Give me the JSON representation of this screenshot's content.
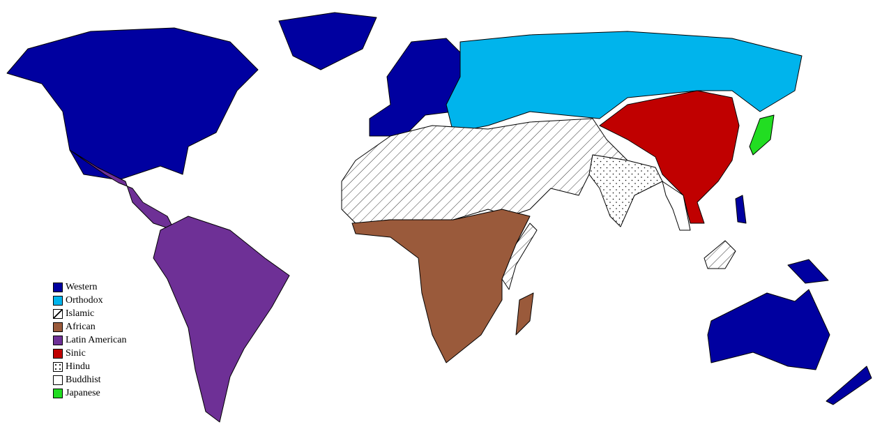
{
  "legend": [
    {
      "label": "Western",
      "color": "#0000a0",
      "fill": "solid"
    },
    {
      "label": "Orthodox",
      "color": "#00b4ec",
      "fill": "solid"
    },
    {
      "label": "Islamic",
      "color": "#ffffff",
      "fill": "hatch"
    },
    {
      "label": "African",
      "color": "#9a5a3b",
      "fill": "solid"
    },
    {
      "label": "Latin American",
      "color": "#6e3096",
      "fill": "solid"
    },
    {
      "label": "Sinic",
      "color": "#c00000",
      "fill": "solid"
    },
    {
      "label": "Hindu",
      "color": "#ffffff",
      "fill": "dots"
    },
    {
      "label": "Buddhist",
      "color": "#ffffff",
      "fill": "solid"
    },
    {
      "label": "Japanese",
      "color": "#22dd22",
      "fill": "solid"
    }
  ]
}
